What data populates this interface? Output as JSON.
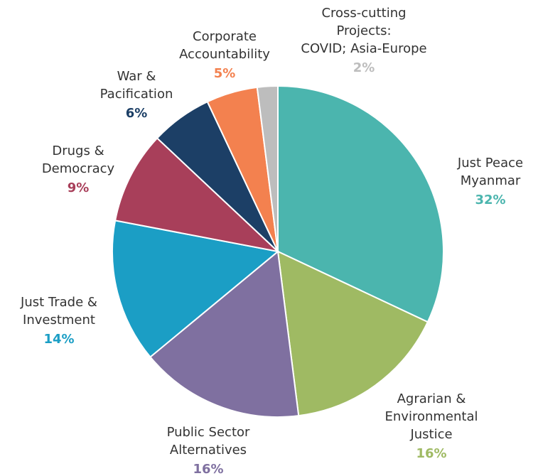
{
  "chart_data": {
    "type": "pie",
    "categories": [
      "Just Peace\nMyanmar",
      "Agrarian &\nEnvironmental\nJustice",
      "Public Sector\nAlternatives",
      "Just Trade &\nInvestment",
      "Drugs &\nDemocracy",
      "War &\nPacification",
      "Corporate\nAccountability",
      "Cross-cutting\nProjects:\nCOVID; Asia-Europe"
    ],
    "values": [
      32,
      16,
      16,
      14,
      9,
      6,
      5,
      2
    ],
    "value_labels": [
      "32%",
      "16%",
      "16%",
      "14%",
      "9%",
      "6%",
      "5%",
      "2%"
    ],
    "colors": [
      "#4bb5ae",
      "#9fba63",
      "#7f70a0",
      "#1b9ec5",
      "#a83f5a",
      "#1c3f66",
      "#f3814f",
      "#bdbdbd"
    ]
  }
}
